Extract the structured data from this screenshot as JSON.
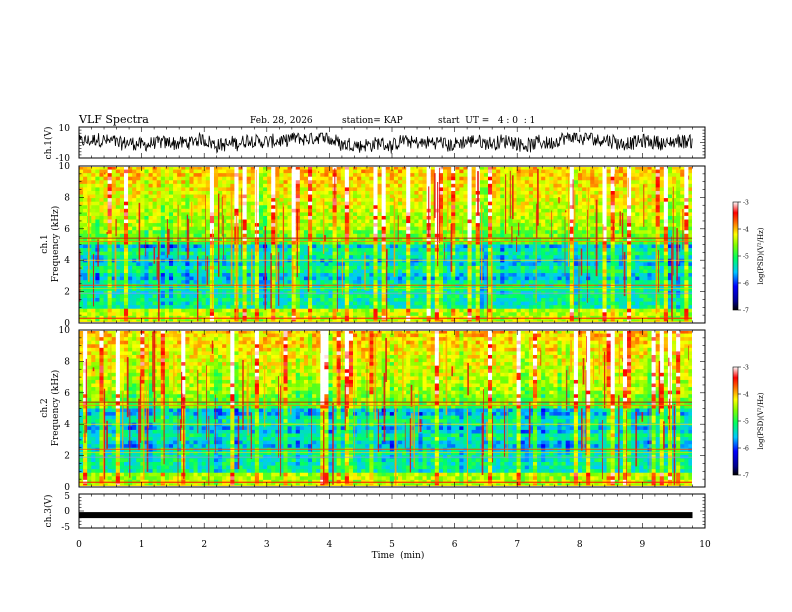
{
  "header": {
    "title": "VLF Spectra",
    "date": "Feb. 28, 2026",
    "station": "station= KAP",
    "start_ut": "start  UT =   4 : 0  : 1"
  },
  "chart_data": [
    {
      "type": "line",
      "name": "ch1-waveform",
      "ylabel": "ch.1(V)",
      "ylim": [
        -10,
        10
      ],
      "y_ticks": [
        "10",
        "-10"
      ],
      "xlim": [
        0,
        10
      ],
      "x_extent": 9.8,
      "description": "noisy broadband waveform fluctuating roughly between -7 and 6 V"
    },
    {
      "type": "heatmap",
      "name": "ch1-spectrogram",
      "ylabel": "ch.1",
      "ylabel2": "Frequency (kHz)",
      "ylim": [
        0,
        10
      ],
      "y_ticks": [
        "0",
        "2",
        "4",
        "6",
        "8",
        "10"
      ],
      "xlim": [
        0,
        10
      ],
      "x_extent": 9.8,
      "colorbar": {
        "label": "log(PSD)(V²/Hz)",
        "range": [
          -7,
          -3
        ],
        "ticks": [
          "-3",
          "-4",
          "-5",
          "-6",
          "-7"
        ]
      }
    },
    {
      "type": "heatmap",
      "name": "ch2-spectrogram",
      "ylabel": "ch.2",
      "ylabel2": "Frequency (kHz)",
      "ylim": [
        0,
        10
      ],
      "y_ticks": [
        "0",
        "2",
        "4",
        "6",
        "8",
        "10"
      ],
      "xlim": [
        0,
        10
      ],
      "x_extent": 9.8,
      "colorbar": {
        "label": "log(PSD)(V²/Hz)",
        "range": [
          -7,
          -3
        ],
        "ticks": [
          "-3",
          "-4",
          "-5",
          "-6",
          "-7"
        ]
      }
    },
    {
      "type": "line",
      "name": "ch3-waveform",
      "ylabel": "ch.3(V)",
      "ylim": [
        -5,
        5
      ],
      "y_ticks": [
        "5",
        "0",
        "-5"
      ],
      "xlim": [
        0,
        10
      ],
      "x_extent": 9.8,
      "constant_value": -1.2,
      "xlabel": "Time  (min)",
      "x_ticks": [
        "0",
        "1",
        "2",
        "3",
        "4",
        "5",
        "6",
        "7",
        "8",
        "9",
        "10"
      ]
    }
  ]
}
